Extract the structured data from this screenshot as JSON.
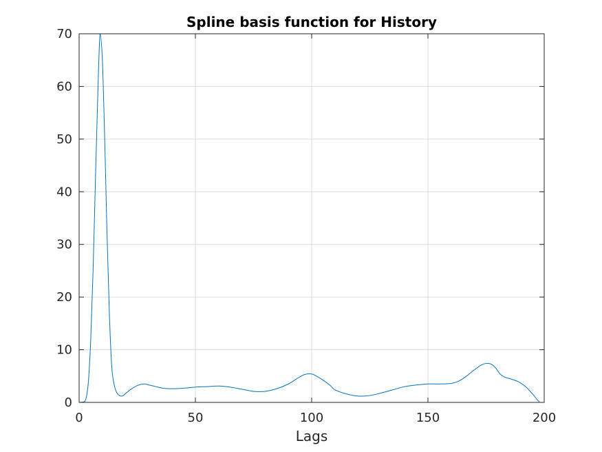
{
  "chart_data": {
    "type": "line",
    "title": "Spline basis function for History",
    "xlabel": "Lags",
    "ylabel": "",
    "xlim": [
      0,
      200
    ],
    "ylim": [
      0,
      70
    ],
    "xticks": [
      0,
      50,
      100,
      150,
      200
    ],
    "yticks": [
      0,
      10,
      20,
      30,
      40,
      50,
      60,
      70
    ],
    "xtick_labels": [
      "0",
      "50",
      "100",
      "150",
      "200"
    ],
    "ytick_labels": [
      "0",
      "10",
      "20",
      "30",
      "40",
      "50",
      "60",
      "70"
    ],
    "grid": true,
    "box": true,
    "series": [
      {
        "color": "#0072BD",
        "x": [
          0,
          2,
          3,
          4,
          5,
          6,
          7,
          8,
          9,
          10,
          11,
          12,
          13,
          14,
          15,
          16,
          17,
          18,
          19,
          20,
          22,
          25,
          28,
          30,
          33,
          36,
          40,
          45,
          50,
          55,
          60,
          65,
          70,
          75,
          80,
          85,
          90,
          94,
          97,
          100,
          102,
          105,
          108,
          110,
          115,
          120,
          125,
          130,
          135,
          140,
          145,
          150,
          155,
          160,
          163,
          166,
          170,
          173,
          175,
          177,
          179,
          181,
          183,
          186,
          189,
          192,
          195,
          197,
          198
        ],
        "y": [
          0,
          0.1,
          0.8,
          4,
          12,
          25,
          42,
          58,
          70,
          65,
          50,
          32,
          17,
          7,
          3.5,
          2,
          1.4,
          1.2,
          1.3,
          1.7,
          2.4,
          3.2,
          3.5,
          3.3,
          3.0,
          2.7,
          2.6,
          2.7,
          2.9,
          3.0,
          3.1,
          2.9,
          2.5,
          2.1,
          2.1,
          2.6,
          3.5,
          4.6,
          5.3,
          5.4,
          5.0,
          4.2,
          3.2,
          2.4,
          1.6,
          1.2,
          1.3,
          1.8,
          2.4,
          3.0,
          3.3,
          3.5,
          3.5,
          3.6,
          4.0,
          4.8,
          6.2,
          7.1,
          7.4,
          7.3,
          6.6,
          5.4,
          4.8,
          4.4,
          3.9,
          3.0,
          1.6,
          0.5,
          0.1
        ]
      }
    ]
  }
}
